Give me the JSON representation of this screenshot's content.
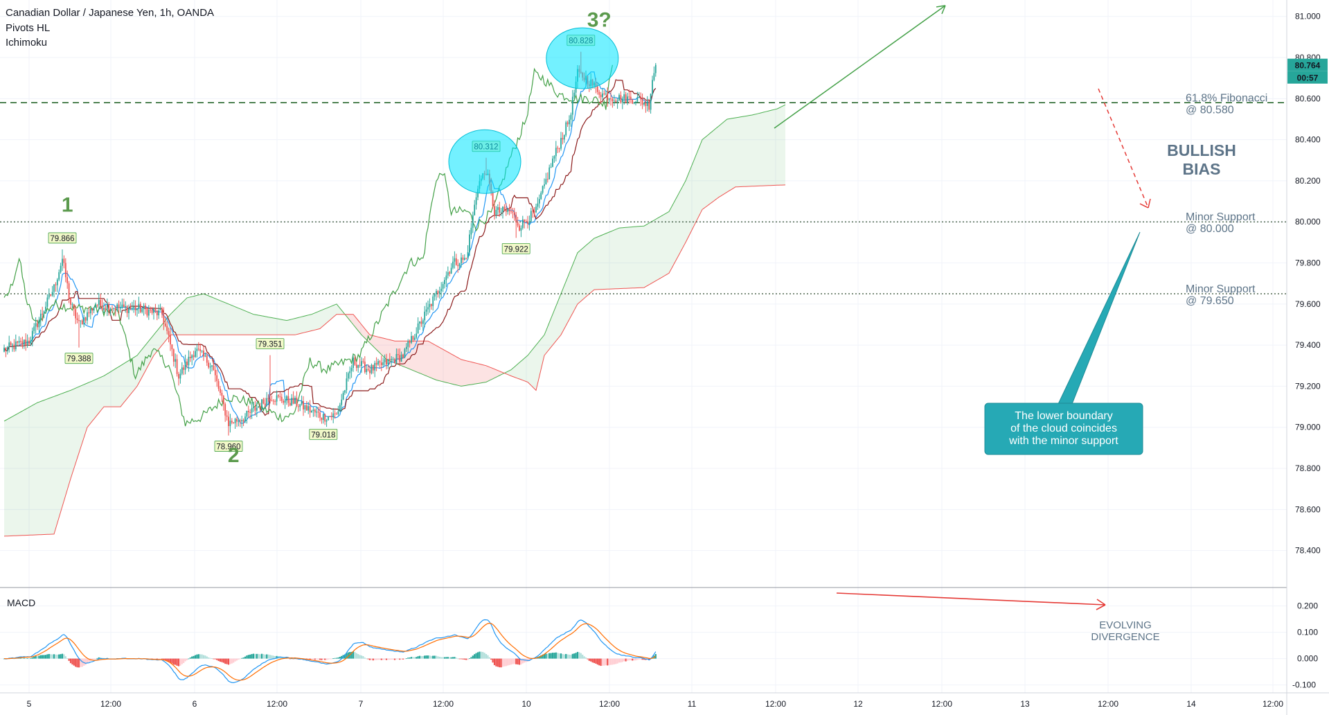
{
  "header": {
    "symbol_line": "Canadian Dollar / Japanese Yen, 1h, OANDA",
    "indicator_1": "Pivots HL",
    "indicator_2": "Ichimoku"
  },
  "price_badge": {
    "value": "80.764",
    "countdown": "00:57",
    "color": "#26a69a"
  },
  "colors": {
    "up": "#26a69a",
    "down": "#ef5350",
    "tenkan": "#2196f3",
    "kijun": "#8b1a1a",
    "chikou": "#43a047",
    "span_a": "#4caf50",
    "span_b": "#ef5350",
    "macd": "#2196f3",
    "signal": "#ff6d00",
    "annotation": "#5b9a4d",
    "callout": "#26a9b5"
  },
  "chart_data": {
    "type": "candlestick",
    "title": "Canadian Dollar / Japanese Yen, 1h, OANDA",
    "price_axis": {
      "ylim": [
        78.22,
        81.08
      ],
      "ticks": [
        "78.400",
        "78.600",
        "78.800",
        "79.000",
        "79.200",
        "79.400",
        "79.600",
        "79.800",
        "80.000",
        "80.200",
        "80.400",
        "80.600",
        "80.800",
        "81.000"
      ]
    },
    "time_axis": {
      "labels": [
        "5",
        "12:00",
        "6",
        "12:00",
        "7",
        "12:00",
        "10",
        "12:00",
        "11",
        "12:00",
        "12",
        "12:00",
        "13",
        "12:00",
        "14",
        "12:00"
      ]
    },
    "levels": [
      {
        "price": 80.58,
        "style": "dashed",
        "label": "61.8% Fibonacci",
        "sublabel": "@ 80.580"
      },
      {
        "price": 80.0,
        "style": "dotted",
        "label": "Minor Support",
        "sublabel": "@ 80.000"
      },
      {
        "price": 79.65,
        "style": "dotted",
        "label": "Minor Support",
        "sublabel": "@ 79.650"
      }
    ],
    "pivots": [
      {
        "index": 35,
        "price": 79.866,
        "label": "79.866",
        "kind": "high"
      },
      {
        "index": 45,
        "price": 79.388,
        "label": "79.388",
        "kind": "low"
      },
      {
        "index": 135,
        "price": 78.96,
        "label": "78.960",
        "kind": "low"
      },
      {
        "index": 160,
        "price": 79.351,
        "label": "79.351",
        "kind": "high"
      },
      {
        "index": 192,
        "price": 79.018,
        "label": "79.018",
        "kind": "low"
      },
      {
        "index": 290,
        "price": 80.312,
        "label": "80.312",
        "kind": "high"
      },
      {
        "index": 308,
        "price": 79.922,
        "label": "79.922",
        "kind": "low"
      },
      {
        "index": 347,
        "price": 80.828,
        "label": "80.828",
        "kind": "high"
      }
    ],
    "waves": [
      {
        "label": "1",
        "index": 38,
        "price": 80.05
      },
      {
        "label": "2",
        "index": 138,
        "price": 78.83
      },
      {
        "label": "3?",
        "index": 358,
        "price": 80.95
      }
    ],
    "anchors": [
      [
        0,
        79.38
      ],
      [
        15,
        79.42
      ],
      [
        30,
        79.68
      ],
      [
        35,
        79.82
      ],
      [
        40,
        79.6
      ],
      [
        45,
        79.5
      ],
      [
        55,
        79.6
      ],
      [
        70,
        79.58
      ],
      [
        80,
        79.58
      ],
      [
        95,
        79.55
      ],
      [
        105,
        79.25
      ],
      [
        115,
        79.38
      ],
      [
        125,
        79.3
      ],
      [
        135,
        79.02
      ],
      [
        145,
        79.05
      ],
      [
        160,
        79.15
      ],
      [
        175,
        79.12
      ],
      [
        192,
        79.05
      ],
      [
        200,
        79.06
      ],
      [
        210,
        79.32
      ],
      [
        220,
        79.28
      ],
      [
        240,
        79.35
      ],
      [
        250,
        79.5
      ],
      [
        260,
        79.65
      ],
      [
        270,
        79.8
      ],
      [
        278,
        79.82
      ],
      [
        285,
        80.18
      ],
      [
        290,
        80.25
      ],
      [
        295,
        80.05
      ],
      [
        305,
        80.05
      ],
      [
        310,
        79.98
      ],
      [
        320,
        80.05
      ],
      [
        330,
        80.3
      ],
      [
        340,
        80.5
      ],
      [
        345,
        80.72
      ],
      [
        350,
        80.7
      ],
      [
        360,
        80.62
      ],
      [
        370,
        80.6
      ],
      [
        380,
        80.6
      ],
      [
        388,
        80.57
      ],
      [
        390,
        80.7
      ],
      [
        392,
        80.76
      ]
    ],
    "candles": {
      "count": 393,
      "last_close": 80.764,
      "generation": "interpolated from anchors"
    },
    "ichimoku": {
      "span_a": [
        [
          0,
          79.03
        ],
        [
          20,
          79.12
        ],
        [
          40,
          79.18
        ],
        [
          60,
          79.25
        ],
        [
          80,
          79.35
        ],
        [
          100,
          79.55
        ],
        [
          110,
          79.63
        ],
        [
          120,
          79.65
        ],
        [
          135,
          79.6
        ],
        [
          150,
          79.55
        ],
        [
          170,
          79.52
        ],
        [
          185,
          79.55
        ],
        [
          200,
          79.6
        ],
        [
          215,
          79.45
        ],
        [
          230,
          79.33
        ],
        [
          245,
          79.28
        ],
        [
          260,
          79.23
        ],
        [
          275,
          79.2
        ],
        [
          290,
          79.22
        ],
        [
          305,
          79.28
        ],
        [
          315,
          79.35
        ],
        [
          325,
          79.45
        ],
        [
          335,
          79.65
        ],
        [
          345,
          79.85
        ],
        [
          355,
          79.92
        ],
        [
          370,
          79.97
        ],
        [
          385,
          79.98
        ],
        [
          400,
          80.05
        ],
        [
          410,
          80.2
        ],
        [
          420,
          80.4
        ],
        [
          435,
          80.5
        ],
        [
          450,
          80.52
        ],
        [
          465,
          80.55
        ],
        [
          470,
          80.57
        ]
      ],
      "span_b": [
        [
          0,
          78.47
        ],
        [
          30,
          78.48
        ],
        [
          40,
          78.75
        ],
        [
          50,
          79.0
        ],
        [
          60,
          79.1
        ],
        [
          70,
          79.1
        ],
        [
          80,
          79.2
        ],
        [
          90,
          79.35
        ],
        [
          100,
          79.45
        ],
        [
          125,
          79.45
        ],
        [
          150,
          79.45
        ],
        [
          175,
          79.45
        ],
        [
          190,
          79.48
        ],
        [
          200,
          79.55
        ],
        [
          210,
          79.55
        ],
        [
          220,
          79.45
        ],
        [
          235,
          79.42
        ],
        [
          255,
          79.42
        ],
        [
          275,
          79.33
        ],
        [
          290,
          79.3
        ],
        [
          305,
          79.25
        ],
        [
          315,
          79.22
        ],
        [
          320,
          79.18
        ],
        [
          325,
          79.35
        ],
        [
          335,
          79.45
        ],
        [
          345,
          79.6
        ],
        [
          355,
          79.67
        ],
        [
          385,
          79.68
        ],
        [
          400,
          79.75
        ],
        [
          410,
          79.9
        ],
        [
          420,
          80.06
        ],
        [
          430,
          80.12
        ],
        [
          440,
          80.17
        ],
        [
          470,
          80.18
        ]
      ]
    },
    "macd": {
      "ticks": [
        "0.200",
        "0.100",
        "0.000",
        "-0.100"
      ],
      "ylim": [
        -0.13,
        0.27
      ],
      "divergence_label": [
        "EVOLVING",
        "DIVERGENCE"
      ]
    }
  },
  "annotations": {
    "bias": [
      "BULLISH",
      "BIAS"
    ],
    "callout": [
      "The lower boundary",
      "of the cloud coincides",
      "with the minor support"
    ],
    "panel_label": "MACD"
  }
}
